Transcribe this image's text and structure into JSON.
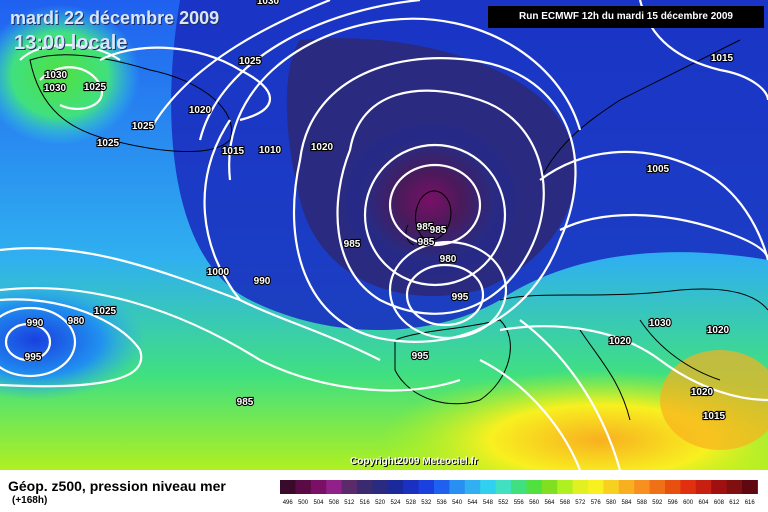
{
  "header": {
    "date": "mardi 22 décembre 2009",
    "time": "13:00 locale",
    "run": "Run ECMWF 12h du mardi 15 décembre 2009"
  },
  "copyright": "Copyright2009 Meteociel.fr",
  "footer": {
    "title": "Géop. z500, pression niveau mer",
    "lead": "(+168h)"
  },
  "scale": {
    "labels": [
      "496",
      "500",
      "504",
      "508",
      "512",
      "516",
      "520",
      "524",
      "528",
      "532",
      "536",
      "540",
      "544",
      "548",
      "552",
      "556",
      "560",
      "564",
      "568",
      "572",
      "576",
      "580",
      "584",
      "588",
      "592",
      "596",
      "600",
      "604",
      "608",
      "612",
      "616"
    ],
    "colors": [
      "#3a0a2a",
      "#5a0a44",
      "#7a1066",
      "#92208a",
      "#5a2a6a",
      "#3a2a70",
      "#2a2a80",
      "#1a2a9a",
      "#1a30c0",
      "#1a40e0",
      "#2060f0",
      "#2890f0",
      "#30b0f0",
      "#30d0f0",
      "#40e0c0",
      "#40e080",
      "#50e040",
      "#80e020",
      "#b0f020",
      "#e0f020",
      "#f8f020",
      "#f8d020",
      "#f8b020",
      "#f89020",
      "#f07018",
      "#e85010",
      "#e03010",
      "#c82010",
      "#a01010",
      "#801010",
      "#600810"
    ]
  },
  "map": {
    "colors": {
      "land": "#101010",
      "isobar": "#ffffff",
      "lowCore": "#5a0a44",
      "deepBlue": "#1a2a9a",
      "midBlue": "#1a40e0",
      "lightBlue": "#30b0f0",
      "green": "#40e080",
      "yellow": "#f8f020",
      "orange": "#f8b020"
    },
    "pressure_labels": [
      "1030",
      "1025",
      "1030",
      "1030",
      "1025",
      "1025",
      "1025",
      "1020",
      "1015",
      "1010",
      "1020",
      "1015",
      "1005",
      "1000",
      "990",
      "985",
      "985",
      "985",
      "985",
      "980",
      "995",
      "995",
      "985",
      "990",
      "980",
      "995",
      "1025",
      "1030",
      "1020",
      "1020",
      "1015",
      "1020"
    ]
  }
}
